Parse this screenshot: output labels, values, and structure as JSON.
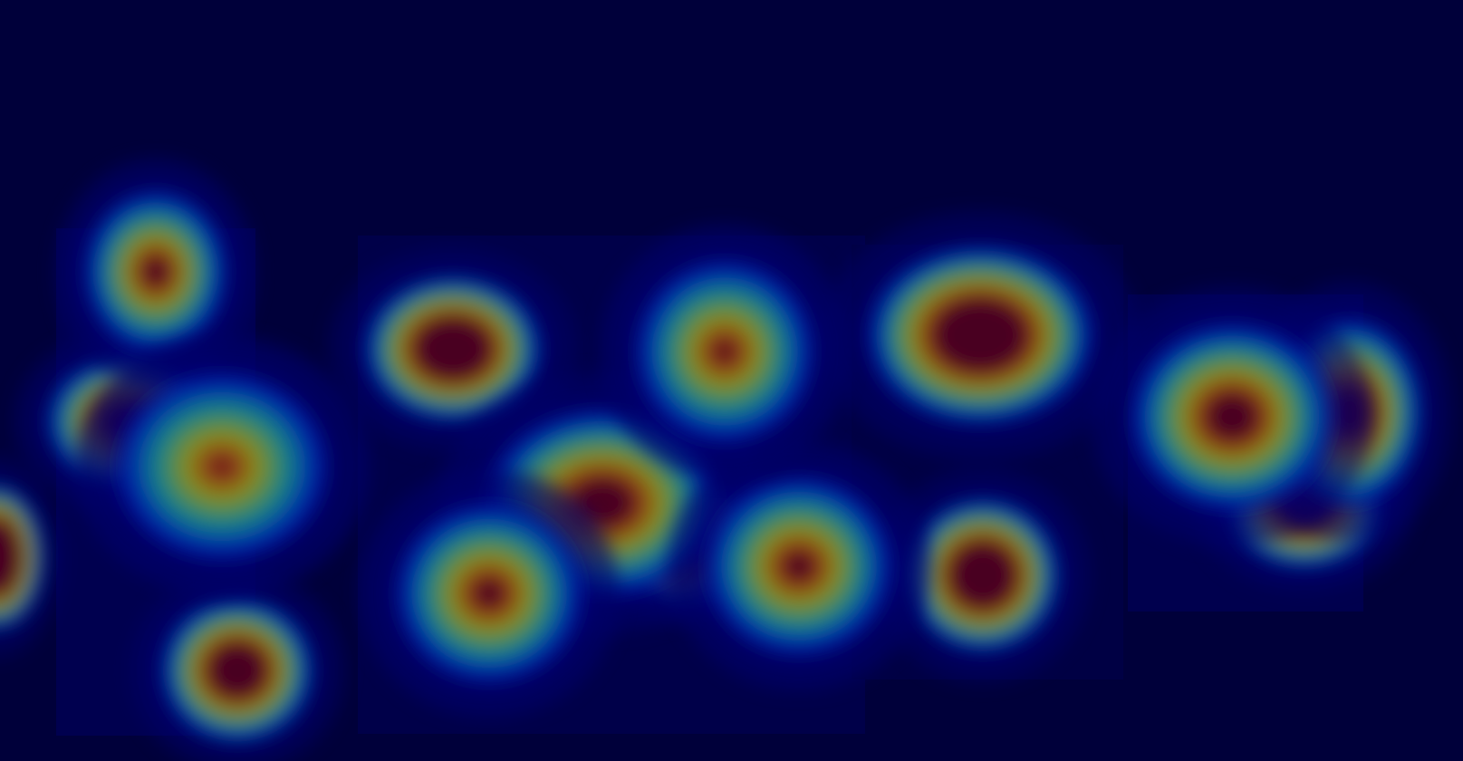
{
  "colors": {
    "background": "#000040",
    "colormap": "jet",
    "cold": "#00007a",
    "cool": "#0022cc",
    "teal": "#11a0a0",
    "warm": "#a8b014",
    "hot": "#b04010",
    "max": "#5a0020"
  },
  "chart_data": {
    "type": "heatmap",
    "title": "",
    "xlabel": "",
    "ylabel": "",
    "colormap": "jet",
    "legend": "none",
    "grid": false,
    "hotspots": [
      {
        "id": "top-left-peak",
        "intensity": 0.82
      },
      {
        "id": "left-max-peak",
        "intensity": 1.0
      },
      {
        "id": "left-shoulder",
        "intensity": 0.55
      },
      {
        "id": "bottom-left-blob",
        "intensity": 0.5
      },
      {
        "id": "left-edge-blob",
        "intensity": 0.3
      },
      {
        "id": "center-upper-arm",
        "intensity": 0.42
      },
      {
        "id": "center-cluster",
        "intensity": 0.68
      },
      {
        "id": "center-lower-peak",
        "intensity": 0.85
      },
      {
        "id": "top-center-peak",
        "intensity": 0.93
      },
      {
        "id": "right-center-peak",
        "intensity": 0.85
      },
      {
        "id": "right-center-link",
        "intensity": 0.48
      },
      {
        "id": "upper-right-blob",
        "intensity": 0.45
      },
      {
        "id": "lower-right-blob",
        "intensity": 0.42
      },
      {
        "id": "far-right-peak",
        "intensity": 0.7
      },
      {
        "id": "far-right-edge",
        "intensity": 0.62
      },
      {
        "id": "far-right-lower",
        "intensity": 0.5
      }
    ]
  }
}
